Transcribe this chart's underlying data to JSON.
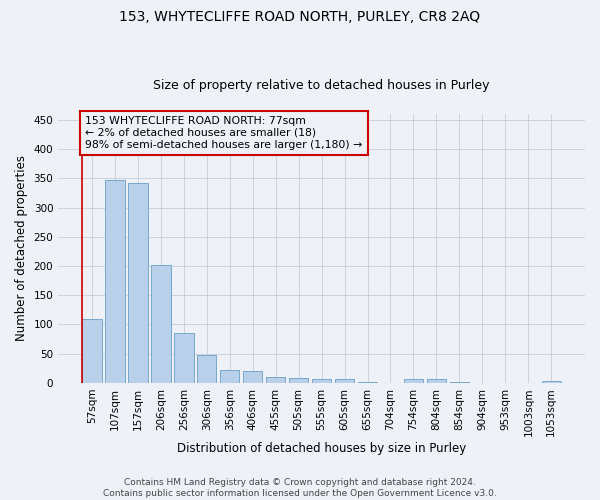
{
  "title": "153, WHYTECLIFFE ROAD NORTH, PURLEY, CR8 2AQ",
  "subtitle": "Size of property relative to detached houses in Purley",
  "xlabel": "Distribution of detached houses by size in Purley",
  "ylabel": "Number of detached properties",
  "footer_line1": "Contains HM Land Registry data © Crown copyright and database right 2024.",
  "footer_line2": "Contains public sector information licensed under the Open Government Licence v3.0.",
  "bar_labels": [
    "57sqm",
    "107sqm",
    "157sqm",
    "206sqm",
    "256sqm",
    "306sqm",
    "356sqm",
    "406sqm",
    "455sqm",
    "505sqm",
    "555sqm",
    "605sqm",
    "655sqm",
    "704sqm",
    "754sqm",
    "804sqm",
    "854sqm",
    "904sqm",
    "953sqm",
    "1003sqm",
    "1053sqm"
  ],
  "bar_values": [
    110,
    347,
    342,
    202,
    85,
    47,
    23,
    21,
    10,
    8,
    7,
    6,
    2,
    0,
    7,
    7,
    1,
    0,
    0,
    0,
    4
  ],
  "bar_color": "#b8d0ea",
  "bar_edge_color": "#6a9fc8",
  "annotation_text": "153 WHYTECLIFFE ROAD NORTH: 77sqm\n← 2% of detached houses are smaller (18)\n98% of semi-detached houses are larger (1,180) →",
  "annotation_box_color": "#cc0000",
  "ylim": [
    0,
    460
  ],
  "yticks": [
    0,
    50,
    100,
    150,
    200,
    250,
    300,
    350,
    400,
    450
  ],
  "background_color": "#eef2f8",
  "grid_color": "#c5cdd8",
  "title_fontsize": 10,
  "subtitle_fontsize": 9,
  "axis_label_fontsize": 8.5,
  "tick_fontsize": 7.5,
  "annotation_fontsize": 7.8,
  "footer_fontsize": 6.5
}
